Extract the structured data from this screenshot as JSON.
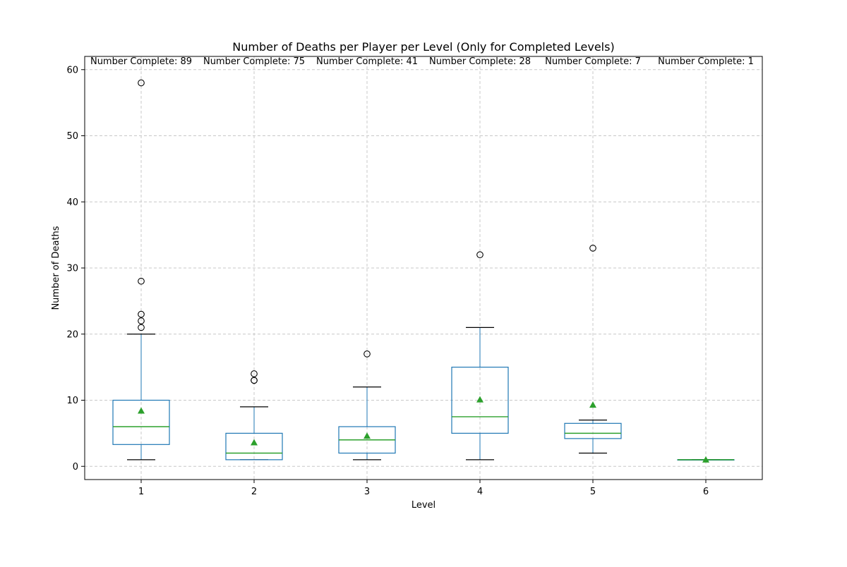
{
  "chart_data": {
    "type": "boxplot",
    "title": "Number of Deaths per Player per Level (Only for Completed Levels)",
    "xlabel": "Level",
    "ylabel": "Number of Deaths",
    "ylim": [
      -2,
      62
    ],
    "yticks": [
      0,
      10,
      20,
      30,
      40,
      50,
      60
    ],
    "grid": true,
    "categories": [
      "1",
      "2",
      "3",
      "4",
      "5",
      "6"
    ],
    "annotations": [
      "Number Complete: 89",
      "Number Complete: 75",
      "Number Complete: 41",
      "Number Complete: 28",
      "Number Complete: 7",
      "Number Complete: 1"
    ],
    "boxes": [
      {
        "level": "1",
        "whisker_low": 1,
        "q1": 3.3,
        "median": 6,
        "q3": 10,
        "whisker_high": 20,
        "mean": 8.4,
        "outliers": [
          21,
          22,
          23,
          28,
          58
        ]
      },
      {
        "level": "2",
        "whisker_low": 1,
        "q1": 1,
        "median": 2,
        "q3": 5,
        "whisker_high": 9,
        "mean": 3.6,
        "outliers": [
          13,
          13,
          14
        ]
      },
      {
        "level": "3",
        "whisker_low": 1,
        "q1": 2,
        "median": 4,
        "q3": 6,
        "whisker_high": 12,
        "mean": 4.6,
        "outliers": [
          17
        ]
      },
      {
        "level": "4",
        "whisker_low": 1,
        "q1": 5,
        "median": 7.5,
        "q3": 15,
        "whisker_high": 21,
        "mean": 10.1,
        "outliers": [
          32
        ]
      },
      {
        "level": "5",
        "whisker_low": 2,
        "q1": 4.2,
        "median": 5,
        "q3": 6.5,
        "whisker_high": 7,
        "mean": 9.3,
        "outliers": [
          33
        ]
      },
      {
        "level": "6",
        "whisker_low": 1,
        "q1": 1,
        "median": 1,
        "q3": 1,
        "whisker_high": 1,
        "mean": 1,
        "outliers": []
      }
    ],
    "colors": {
      "box": "#1f77b4",
      "median": "#2ca02c",
      "mean": "#2ca02c",
      "whisker": "#000000",
      "grid": "#c8c8c8"
    }
  }
}
